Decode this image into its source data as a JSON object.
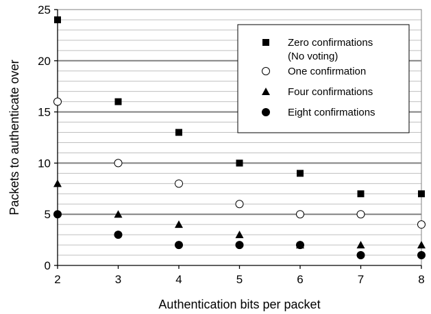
{
  "chart_data": {
    "type": "scatter",
    "xlabel": "Authentication bits per packet",
    "ylabel": "Packets to authenticate over",
    "xlim": [
      2,
      8
    ],
    "ylim": [
      0,
      25
    ],
    "x_ticks": [
      "2",
      "3",
      "4",
      "5",
      "6",
      "7",
      "8"
    ],
    "y_ticks": [
      "0",
      "5",
      "10",
      "15",
      "20",
      "25"
    ],
    "grid": "horizontal, minor every 1, major every 5",
    "legend_position": "top-right",
    "series": [
      {
        "name": "Zero confirmations\n(No voting)",
        "legend_lines": [
          "Zero confirmations",
          "(No voting)"
        ],
        "marker": "filled-square",
        "x": [
          2,
          3,
          4,
          5,
          6,
          7,
          8
        ],
        "y": [
          24,
          16,
          13,
          10,
          9,
          7,
          7
        ]
      },
      {
        "name": "One confirmation",
        "legend_lines": [
          "One confirmation"
        ],
        "marker": "open-circle",
        "x": [
          2,
          3,
          4,
          5,
          6,
          7,
          8
        ],
        "y": [
          16,
          10,
          8,
          6,
          5,
          5,
          4
        ]
      },
      {
        "name": "Four confirmations",
        "legend_lines": [
          "Four confirmations"
        ],
        "marker": "filled-triangle",
        "x": [
          2,
          3,
          4,
          5,
          6,
          7,
          8
        ],
        "y": [
          8,
          5,
          4,
          3,
          2,
          2,
          2
        ]
      },
      {
        "name": "Eight confirmations",
        "legend_lines": [
          "Eight confirmations"
        ],
        "marker": "filled-circle",
        "x": [
          2,
          3,
          4,
          5,
          6,
          7,
          8
        ],
        "y": [
          5,
          3,
          2,
          2,
          2,
          1,
          1
        ]
      }
    ]
  }
}
